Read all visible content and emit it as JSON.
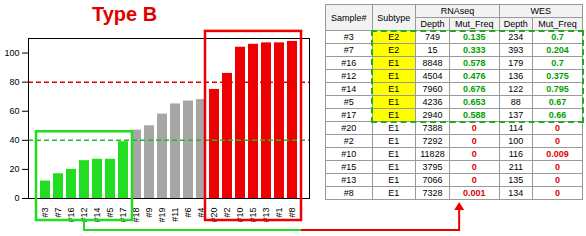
{
  "chart_data": {
    "type": "bar",
    "title": "Type B",
    "categories": [
      "#3",
      "#7",
      "#16",
      "#12",
      "#14",
      "#5",
      "#17",
      "#18",
      "#9",
      "#19",
      "#11",
      "#6",
      "#4",
      "#20",
      "#2",
      "#10",
      "#15",
      "#13",
      "#1",
      "#8"
    ],
    "values": [
      12,
      17,
      20,
      26,
      27,
      27,
      39,
      47,
      50,
      58,
      65,
      67,
      68,
      75,
      86,
      104,
      106,
      107,
      107,
      108
    ],
    "colors": [
      "#22dd22",
      "#22dd22",
      "#22dd22",
      "#22dd22",
      "#22dd22",
      "#22dd22",
      "#22dd22",
      "#a6a6a6",
      "#a6a6a6",
      "#a6a6a6",
      "#a6a6a6",
      "#a6a6a6",
      "#a6a6a6",
      "#ee0000",
      "#ee0000",
      "#ee0000",
      "#ee0000",
      "#ee0000",
      "#ee0000",
      "#ee0000"
    ],
    "ylim": [
      0,
      110
    ],
    "yticks": [
      0,
      20,
      40,
      60,
      80,
      100
    ],
    "grid": false,
    "reference_lines": [
      {
        "value": 80,
        "color": "#dd0000"
      },
      {
        "value": 40,
        "color": "#22bb22"
      }
    ]
  },
  "table": {
    "header": [
      "Sample#",
      "Subtype",
      "RNAseq",
      "WES"
    ],
    "subheader": [
      "Depth",
      "Mut_Freq",
      "Depth",
      "Mut_Freq"
    ],
    "highlight_color": "#00a000",
    "other_color": "#e00000",
    "subtype_fill": "#ffff00",
    "rows": [
      {
        "cells": [
          "#3",
          "E2",
          749,
          0.135,
          234,
          0.7
        ],
        "highlight": true
      },
      {
        "cells": [
          "#7",
          "E2",
          15,
          0.333,
          393,
          0.204
        ],
        "highlight": true
      },
      {
        "cells": [
          "#16",
          "E1",
          8848,
          0.578,
          179,
          0.7
        ],
        "highlight": true
      },
      {
        "cells": [
          "#12",
          "E1",
          4504,
          0.476,
          136,
          0.375
        ],
        "highlight": true
      },
      {
        "cells": [
          "#14",
          "E1",
          7960,
          0.676,
          122,
          0.795
        ],
        "highlight": true
      },
      {
        "cells": [
          "#5",
          "E1",
          4236,
          0.653,
          88,
          0.67
        ],
        "highlight": true
      },
      {
        "cells": [
          "#17",
          "E1",
          2940,
          0.588,
          137,
          0.66
        ],
        "highlight": true
      },
      {
        "cells": [
          "#20",
          "E1",
          7388,
          0,
          114,
          0
        ],
        "highlight": false
      },
      {
        "cells": [
          "#2",
          "E1",
          7292,
          0,
          100,
          0
        ],
        "highlight": false
      },
      {
        "cells": [
          "#10",
          "E1",
          11828,
          0,
          116,
          0.009
        ],
        "highlight": false
      },
      {
        "cells": [
          "#15",
          "E1",
          3795,
          0,
          211,
          0
        ],
        "highlight": false
      },
      {
        "cells": [
          "#13",
          "E1",
          7066,
          0,
          135,
          0
        ],
        "highlight": false
      },
      {
        "cells": [
          "#8",
          "E1",
          7328,
          0.001,
          134,
          0
        ],
        "highlight": false
      }
    ]
  }
}
